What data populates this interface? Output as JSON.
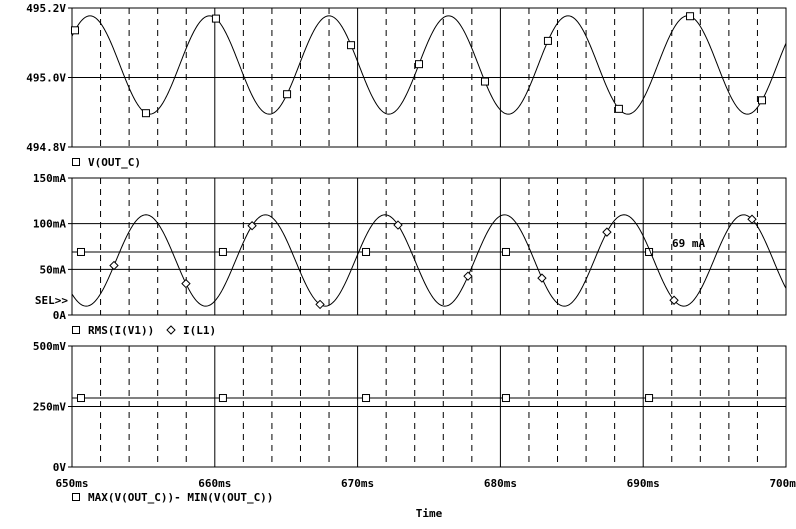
{
  "chart_data": [
    {
      "type": "line",
      "title": "",
      "ylabel": "",
      "ylim": [
        494.8,
        495.2
      ],
      "yticks": [
        "495.2V",
        "495.0V",
        "494.8V"
      ],
      "ytick_values": [
        495.2,
        495.0,
        494.8
      ],
      "legend": [
        {
          "marker": "square",
          "label": "V(OUT_C)"
        }
      ],
      "series": [
        {
          "name": "V(OUT_C)",
          "kind": "sine",
          "offset": 495.036,
          "amplitude": 0.1415,
          "period_ms": 8.37,
          "peak_time_ms": 651.26,
          "marker_times_ms": [
            650.21,
            655.18,
            660.08,
            665.06,
            669.54,
            674.3,
            678.92,
            683.33,
            688.3,
            693.28,
            698.32
          ]
        }
      ]
    },
    {
      "type": "line",
      "ylim": [
        0,
        150
      ],
      "yticks": [
        "150mA",
        "100mA",
        "50mA",
        "0A"
      ],
      "ytick_values": [
        150,
        100,
        50,
        0
      ],
      "selection_label": "SEL>>",
      "annotation": "69 mA",
      "legend": [
        {
          "marker": "square",
          "label": "RMS(I(V1))"
        },
        {
          "marker": "diamond",
          "label": "I(L1)"
        }
      ],
      "series": [
        {
          "name": "RMS(I(V1))",
          "kind": "constant",
          "value": 69,
          "marker": "square",
          "marker_times_ms": [
            650.63,
            660.57,
            670.59,
            680.39,
            690.41
          ]
        },
        {
          "name": "I(L1)",
          "kind": "sine",
          "offset": 59.7,
          "amplitude": 50,
          "period_ms": 8.37,
          "peak_time_ms": 655.18,
          "marker": "diamond",
          "marker_times_ms": [
            652.94,
            657.98,
            662.61,
            667.37,
            672.83,
            677.73,
            682.91,
            687.46,
            692.16,
            697.62
          ]
        }
      ]
    },
    {
      "type": "line",
      "ylim": [
        0,
        500
      ],
      "yticks": [
        "500mV",
        "250mV",
        "0V"
      ],
      "ytick_values": [
        500,
        250,
        0
      ],
      "legend": [
        {
          "marker": "square",
          "label": "MAX(V(OUT_C))- MIN(V(OUT_C))"
        }
      ],
      "series": [
        {
          "name": "MAX(V(OUT_C))- MIN(V(OUT_C))",
          "kind": "constant",
          "value": 285,
          "marker_times_ms": [
            650.63,
            660.57,
            670.59,
            680.39,
            690.41
          ]
        }
      ]
    }
  ],
  "x_axis": {
    "label": "Time",
    "xlim": [
      650,
      700
    ],
    "ticks": [
      "650ms",
      "660ms",
      "670ms",
      "680ms",
      "690ms",
      "700ms"
    ],
    "tick_values": [
      650,
      660,
      670,
      680,
      690,
      700
    ],
    "minor_grid_step_ms": 2
  }
}
